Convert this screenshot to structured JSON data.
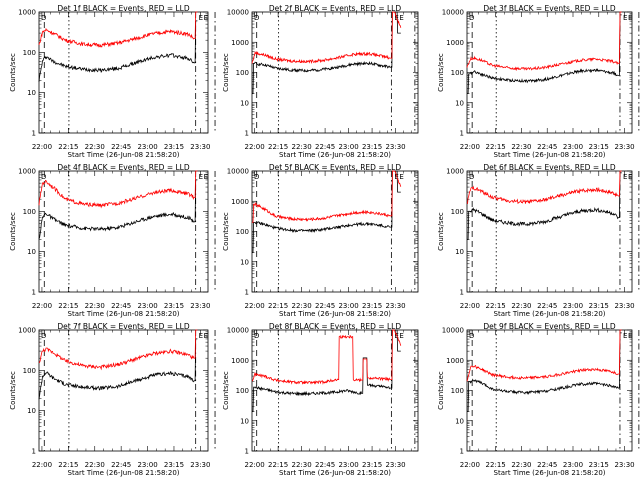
{
  "colors": {
    "events": "#000000",
    "lld": "#ff0000",
    "axis": "#000000"
  },
  "common": {
    "ylabel": "Counts/sec",
    "xlabel": "Start Time (26-Jun-08 21:58:20)",
    "ytick_labels": [
      "1",
      "10",
      "100",
      "1000"
    ],
    "ytick_labels_ext": [
      "1",
      "10",
      "100",
      "1000",
      "10000"
    ],
    "xtick_labels": [
      "22:00",
      "22:15",
      "22:30",
      "22:45",
      "23:00",
      "23:15",
      "23:30"
    ],
    "xtick_labels_alt": [
      "22:00",
      "22:15",
      "22:30",
      "22:45",
      "23:00",
      "23:15",
      "23:30"
    ],
    "markers": {
      "left": "D",
      "right1": "E",
      "right2": "E"
    }
  },
  "chart_data": [
    {
      "type": "line",
      "title": "Det 1f BLACK = Events, RED = LLD",
      "ylim": [
        1,
        1000
      ],
      "log": true,
      "xlim_min": [
        0,
        96
      ],
      "vlines_min": [
        3,
        17,
        89,
        100
      ],
      "series": [
        {
          "name": "Events",
          "x": [
            0,
            2,
            4,
            8,
            15,
            25,
            35,
            45,
            55,
            65,
            75,
            85,
            88,
            90
          ],
          "y": [
            20,
            60,
            80,
            60,
            45,
            38,
            36,
            40,
            55,
            75,
            85,
            70,
            55,
            600
          ]
        },
        {
          "name": "LLD",
          "x": [
            0,
            2,
            4,
            8,
            15,
            25,
            35,
            45,
            55,
            65,
            75,
            85,
            88,
            90
          ],
          "y": [
            150,
            320,
            360,
            300,
            200,
            160,
            150,
            170,
            220,
            290,
            330,
            280,
            220,
            1000
          ]
        }
      ]
    },
    {
      "type": "line",
      "title": "Det 2f BLACK = Events, RED = LLD",
      "ylim": [
        1,
        10000
      ],
      "log": true,
      "xlim_min": [
        0,
        106
      ],
      "vlines_min": [
        3,
        17,
        89,
        104
      ],
      "series": [
        {
          "name": "Events",
          "x": [
            0,
            2,
            4,
            8,
            15,
            25,
            35,
            45,
            55,
            65,
            75,
            85,
            88,
            91,
            95
          ],
          "y": [
            20,
            200,
            190,
            180,
            140,
            120,
            115,
            125,
            150,
            190,
            200,
            160,
            150,
            10000,
            2000
          ]
        },
        {
          "name": "LLD",
          "x": [
            0,
            2,
            4,
            8,
            15,
            25,
            35,
            45,
            55,
            65,
            75,
            85,
            88,
            91,
            95
          ],
          "y": [
            200,
            450,
            420,
            380,
            280,
            240,
            230,
            250,
            310,
            400,
            420,
            330,
            300,
            10000,
            3000
          ]
        }
      ]
    },
    {
      "type": "line",
      "title": "Det 3f BLACK = Events, RED = LLD",
      "ylim": [
        1,
        10000
      ],
      "log": true,
      "xlim_min": [
        0,
        96
      ],
      "vlines_min": [
        3,
        17,
        89,
        100
      ],
      "series": [
        {
          "name": "Events",
          "x": [
            0,
            2,
            4,
            8,
            15,
            25,
            35,
            45,
            55,
            65,
            75,
            85,
            88,
            90
          ],
          "y": [
            20,
            90,
            110,
            90,
            65,
            55,
            52,
            58,
            80,
            110,
            120,
            95,
            80,
            8000
          ]
        },
        {
          "name": "LLD",
          "x": [
            0,
            2,
            4,
            8,
            15,
            25,
            35,
            45,
            55,
            65,
            75,
            85,
            88,
            90
          ],
          "y": [
            150,
            280,
            300,
            260,
            170,
            140,
            130,
            145,
            190,
            250,
            280,
            230,
            200,
            10000
          ]
        }
      ]
    },
    {
      "type": "line",
      "title": "Det 4f BLACK = Events, RED = LLD",
      "ylim": [
        1,
        1000
      ],
      "log": true,
      "xlim_min": [
        0,
        96
      ],
      "vlines_min": [
        3,
        17,
        89,
        100
      ],
      "series": [
        {
          "name": "Events",
          "x": [
            0,
            2,
            4,
            8,
            15,
            25,
            35,
            45,
            55,
            65,
            75,
            85,
            88,
            90
          ],
          "y": [
            20,
            70,
            90,
            65,
            45,
            38,
            36,
            40,
            55,
            75,
            85,
            70,
            55,
            600
          ]
        },
        {
          "name": "LLD",
          "x": [
            0,
            2,
            4,
            8,
            15,
            25,
            35,
            45,
            55,
            65,
            75,
            85,
            88,
            90
          ],
          "y": [
            150,
            500,
            550,
            400,
            200,
            150,
            140,
            160,
            210,
            290,
            330,
            270,
            220,
            1000
          ]
        }
      ]
    },
    {
      "type": "line",
      "title": "Det 5f BLACK = Events, RED = LLD",
      "ylim": [
        1,
        10000
      ],
      "log": true,
      "xlim_min": [
        0,
        106
      ],
      "vlines_min": [
        3,
        17,
        89,
        104
      ],
      "series": [
        {
          "name": "Events",
          "x": [
            0,
            2,
            4,
            8,
            15,
            25,
            35,
            45,
            55,
            65,
            75,
            85,
            88,
            91,
            95
          ],
          "y": [
            20,
            200,
            190,
            170,
            130,
            110,
            105,
            115,
            140,
            170,
            180,
            150,
            140,
            10000,
            2000
          ]
        },
        {
          "name": "LLD",
          "x": [
            0,
            2,
            4,
            8,
            15,
            25,
            35,
            45,
            55,
            65,
            75,
            85,
            88,
            91,
            95
          ],
          "y": [
            200,
            800,
            700,
            550,
            320,
            260,
            250,
            270,
            340,
            420,
            440,
            360,
            330,
            10000,
            3000
          ]
        }
      ]
    },
    {
      "type": "line",
      "title": "Det 6f BLACK = Events, RED = LLD",
      "ylim": [
        1,
        1000
      ],
      "log": true,
      "xlim_min": [
        0,
        96
      ],
      "vlines_min": [
        3,
        17,
        89,
        100
      ],
      "series": [
        {
          "name": "Events",
          "x": [
            0,
            2,
            4,
            8,
            15,
            25,
            35,
            45,
            55,
            65,
            75,
            85,
            88,
            90
          ],
          "y": [
            20,
            100,
            110,
            90,
            60,
            50,
            48,
            55,
            75,
            100,
            110,
            90,
            70,
            900
          ]
        },
        {
          "name": "LLD",
          "x": [
            0,
            2,
            4,
            8,
            15,
            25,
            35,
            45,
            55,
            65,
            75,
            85,
            88,
            90
          ],
          "y": [
            150,
            350,
            380,
            320,
            220,
            180,
            170,
            190,
            250,
            320,
            350,
            290,
            240,
            1000
          ]
        }
      ]
    },
    {
      "type": "line",
      "title": "Det 7f BLACK = Events, RED = LLD",
      "ylim": [
        1,
        1000
      ],
      "log": true,
      "xlim_min": [
        0,
        96
      ],
      "vlines_min": [
        3,
        17,
        89,
        100
      ],
      "series": [
        {
          "name": "Events",
          "x": [
            0,
            2,
            4,
            8,
            15,
            25,
            35,
            45,
            55,
            65,
            75,
            85,
            88,
            90
          ],
          "y": [
            20,
            70,
            90,
            65,
            45,
            38,
            36,
            40,
            55,
            75,
            85,
            70,
            55,
            600
          ]
        },
        {
          "name": "LLD",
          "x": [
            0,
            2,
            4,
            8,
            15,
            25,
            35,
            45,
            55,
            65,
            75,
            85,
            88,
            90
          ],
          "y": [
            150,
            300,
            340,
            280,
            170,
            130,
            120,
            140,
            190,
            260,
            300,
            240,
            200,
            1000
          ]
        }
      ]
    },
    {
      "type": "line",
      "title": "Det 8f BLACK = Events, RED = LLD",
      "ylim": [
        1,
        10000
      ],
      "log": true,
      "xlim_min": [
        0,
        106
      ],
      "vlines_min": [
        3,
        17,
        89,
        104
      ],
      "series": [
        {
          "name": "Events",
          "x": [
            0,
            2,
            4,
            8,
            15,
            25,
            35,
            45,
            55,
            60,
            65,
            70,
            72,
            75,
            85,
            88,
            91,
            95
          ],
          "y": [
            20,
            130,
            120,
            110,
            90,
            80,
            78,
            82,
            90,
            100,
            90,
            80,
            1200,
            150,
            130,
            120,
            10000,
            2000
          ]
        },
        {
          "name": "LLD",
          "x": [
            0,
            2,
            4,
            8,
            15,
            25,
            35,
            45,
            55,
            56,
            64,
            65,
            70,
            72,
            75,
            85,
            88,
            91,
            95
          ],
          "y": [
            200,
            350,
            320,
            300,
            220,
            190,
            180,
            190,
            230,
            6000,
            6000,
            230,
            220,
            1100,
            260,
            240,
            230,
            10000,
            3000
          ]
        }
      ]
    },
    {
      "type": "line",
      "title": "Det 9f BLACK = Events, RED = LLD",
      "ylim": [
        1,
        10000
      ],
      "log": true,
      "xlim_min": [
        0,
        96
      ],
      "vlines_min": [
        3,
        17,
        89,
        100
      ],
      "series": [
        {
          "name": "Events",
          "x": [
            0,
            2,
            4,
            8,
            15,
            25,
            35,
            45,
            55,
            65,
            75,
            85,
            88,
            90
          ],
          "y": [
            20,
            200,
            220,
            180,
            110,
            90,
            85,
            95,
            120,
            160,
            170,
            140,
            120,
            8000
          ]
        },
        {
          "name": "LLD",
          "x": [
            0,
            2,
            4,
            8,
            15,
            25,
            35,
            45,
            55,
            65,
            75,
            85,
            88,
            90
          ],
          "y": [
            200,
            600,
            650,
            520,
            330,
            270,
            260,
            280,
            350,
            460,
            500,
            410,
            350,
            10000
          ]
        }
      ]
    }
  ]
}
